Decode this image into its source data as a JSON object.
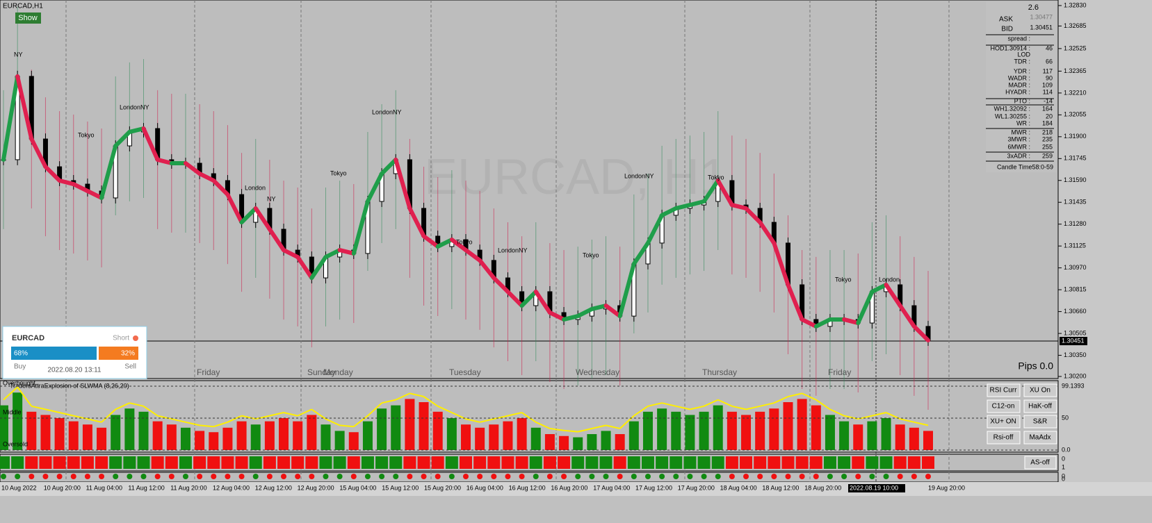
{
  "window": {
    "symbol": "EURCAD,H1",
    "show_button": "Show",
    "watermark": "EURCAD, H1",
    "pips": "Pips 0.0"
  },
  "price_axis": {
    "labels": [
      "1.32830",
      "1.32685",
      "1.32525",
      "1.32365",
      "1.32210",
      "1.32055",
      "1.31900",
      "1.31745",
      "1.31590",
      "1.31435",
      "1.31280",
      "1.31125",
      "1.30970",
      "1.30815",
      "1.30660",
      "1.30505",
      "1.30350",
      "1.30200"
    ],
    "current": "1.30451"
  },
  "time_axis": [
    "10 Aug 2022",
    "10 Aug 20:00",
    "11 Aug 04:00",
    "11 Aug 12:00",
    "11 Aug 20:00",
    "12 Aug 04:00",
    "12 Aug 12:00",
    "12 Aug 20:00",
    "15 Aug 04:00",
    "15 Aug 12:00",
    "15 Aug 20:00",
    "16 Aug 04:00",
    "16 Aug 12:00",
    "16 Aug 20:00",
    "17 Aug 04:00",
    "17 Aug 12:00",
    "17 Aug 20:00",
    "18 Aug 04:00",
    "18 Aug 12:00",
    "18 Aug 20:00",
    "2022.08.19 10:00",
    "19 Aug 20:00"
  ],
  "days": [
    "Friday",
    "Sunday",
    "Monday",
    "Tuesday",
    "Wednesday",
    "Thursday",
    "Friday"
  ],
  "sessions": [
    "NY",
    "LondonNY",
    "Tokyo",
    "LondonNY",
    "Tokyo",
    "London",
    "NY",
    "Tokyo",
    "LondonNY",
    "Tokyo",
    "LondonNY",
    "Tokyo",
    "Tokyo",
    "London"
  ],
  "info": {
    "top": "2.6",
    "ask_label": "ASK",
    "ask": "1.30477",
    "bid_label": "BID",
    "bid": "1.30451",
    "rows": [
      [
        "spread :"
      ],
      [
        "HOD1.30914 :",
        "46"
      ],
      [
        "LOD"
      ],
      [
        "TDR :",
        "66"
      ],
      [
        "YDR :",
        "117"
      ],
      [
        "WADR :",
        "90"
      ],
      [
        "MADR :",
        "109"
      ],
      [
        "HYADR :",
        "114"
      ],
      [
        "PTO :",
        "-14"
      ],
      [
        "WH1.32092 :",
        "164"
      ],
      [
        "WL1.30255 :",
        "20"
      ],
      [
        "WR :",
        "184"
      ],
      [
        "MWR :",
        "218"
      ],
      [
        "3MWR :",
        "235"
      ],
      [
        "6MWR :",
        "255"
      ],
      [
        "3xADR :",
        "259"
      ]
    ],
    "candle_time": "Candle Time58:0-59"
  },
  "widget": {
    "symbol": "EURCAD",
    "signal": "Short",
    "buy_pct": "68%",
    "sell_pct": "32%",
    "buy": "Buy",
    "time": "2022.08.20 13:11",
    "sell": "Sell"
  },
  "indicator": {
    "title": "TradersAttraExplosion of SLWMA (8,26,20)",
    "levels": [
      "Overbought",
      "Middle",
      "Oversold"
    ],
    "scale": [
      "99.1393",
      "50",
      "0.0"
    ],
    "buttons": [
      "RSI Curr",
      "XU On",
      "C12-on",
      "HaK-off",
      "XU+ ON",
      "S&R",
      "Rsi-off",
      "MaAdx"
    ],
    "strip_button": "AS-off",
    "lower_scales": [
      "0",
      "1",
      "0",
      "0"
    ]
  },
  "closes": [
    1.31737,
    1.32328,
    1.31884,
    1.31687,
    1.31589,
    1.31564,
    1.31515,
    1.31466,
    1.31835,
    1.31934,
    1.31958,
    1.31737,
    1.31712,
    1.31712,
    1.31638,
    1.31589,
    1.3149,
    1.31293,
    1.31392,
    1.31244,
    1.31096,
    1.31047,
    1.30899,
    1.31047,
    1.31096,
    1.31072,
    1.31441,
    1.31638,
    1.31737,
    1.31392,
    1.31195,
    1.31121,
    1.3117,
    1.31096,
    1.31023,
    1.30899,
    1.30801,
    1.30702,
    1.30801,
    1.30653,
    1.30604,
    1.30628,
    1.30678,
    1.30702,
    1.30628,
    1.30998,
    1.31146,
    1.31343,
    1.31392,
    1.31416,
    1.31441,
    1.31589,
    1.31416,
    1.31392,
    1.31293,
    1.31146,
    1.3085,
    1.30604,
    1.30555,
    1.30604,
    1.30604,
    1.30579,
    1.30801,
    1.3085,
    1.30702,
    1.30555,
    1.30456
  ],
  "oscillator": [
    70,
    90,
    60,
    55,
    50,
    45,
    40,
    35,
    55,
    65,
    60,
    45,
    40,
    35,
    30,
    28,
    35,
    45,
    40,
    45,
    50,
    45,
    55,
    40,
    30,
    28,
    45,
    65,
    70,
    80,
    75,
    60,
    50,
    40,
    35,
    40,
    45,
    50,
    35,
    25,
    22,
    20,
    25,
    30,
    25,
    45,
    60,
    65,
    60,
    55,
    60,
    70,
    60,
    55,
    60,
    65,
    75,
    80,
    70,
    55,
    45,
    40,
    45,
    50,
    40,
    35,
    30
  ]
}
